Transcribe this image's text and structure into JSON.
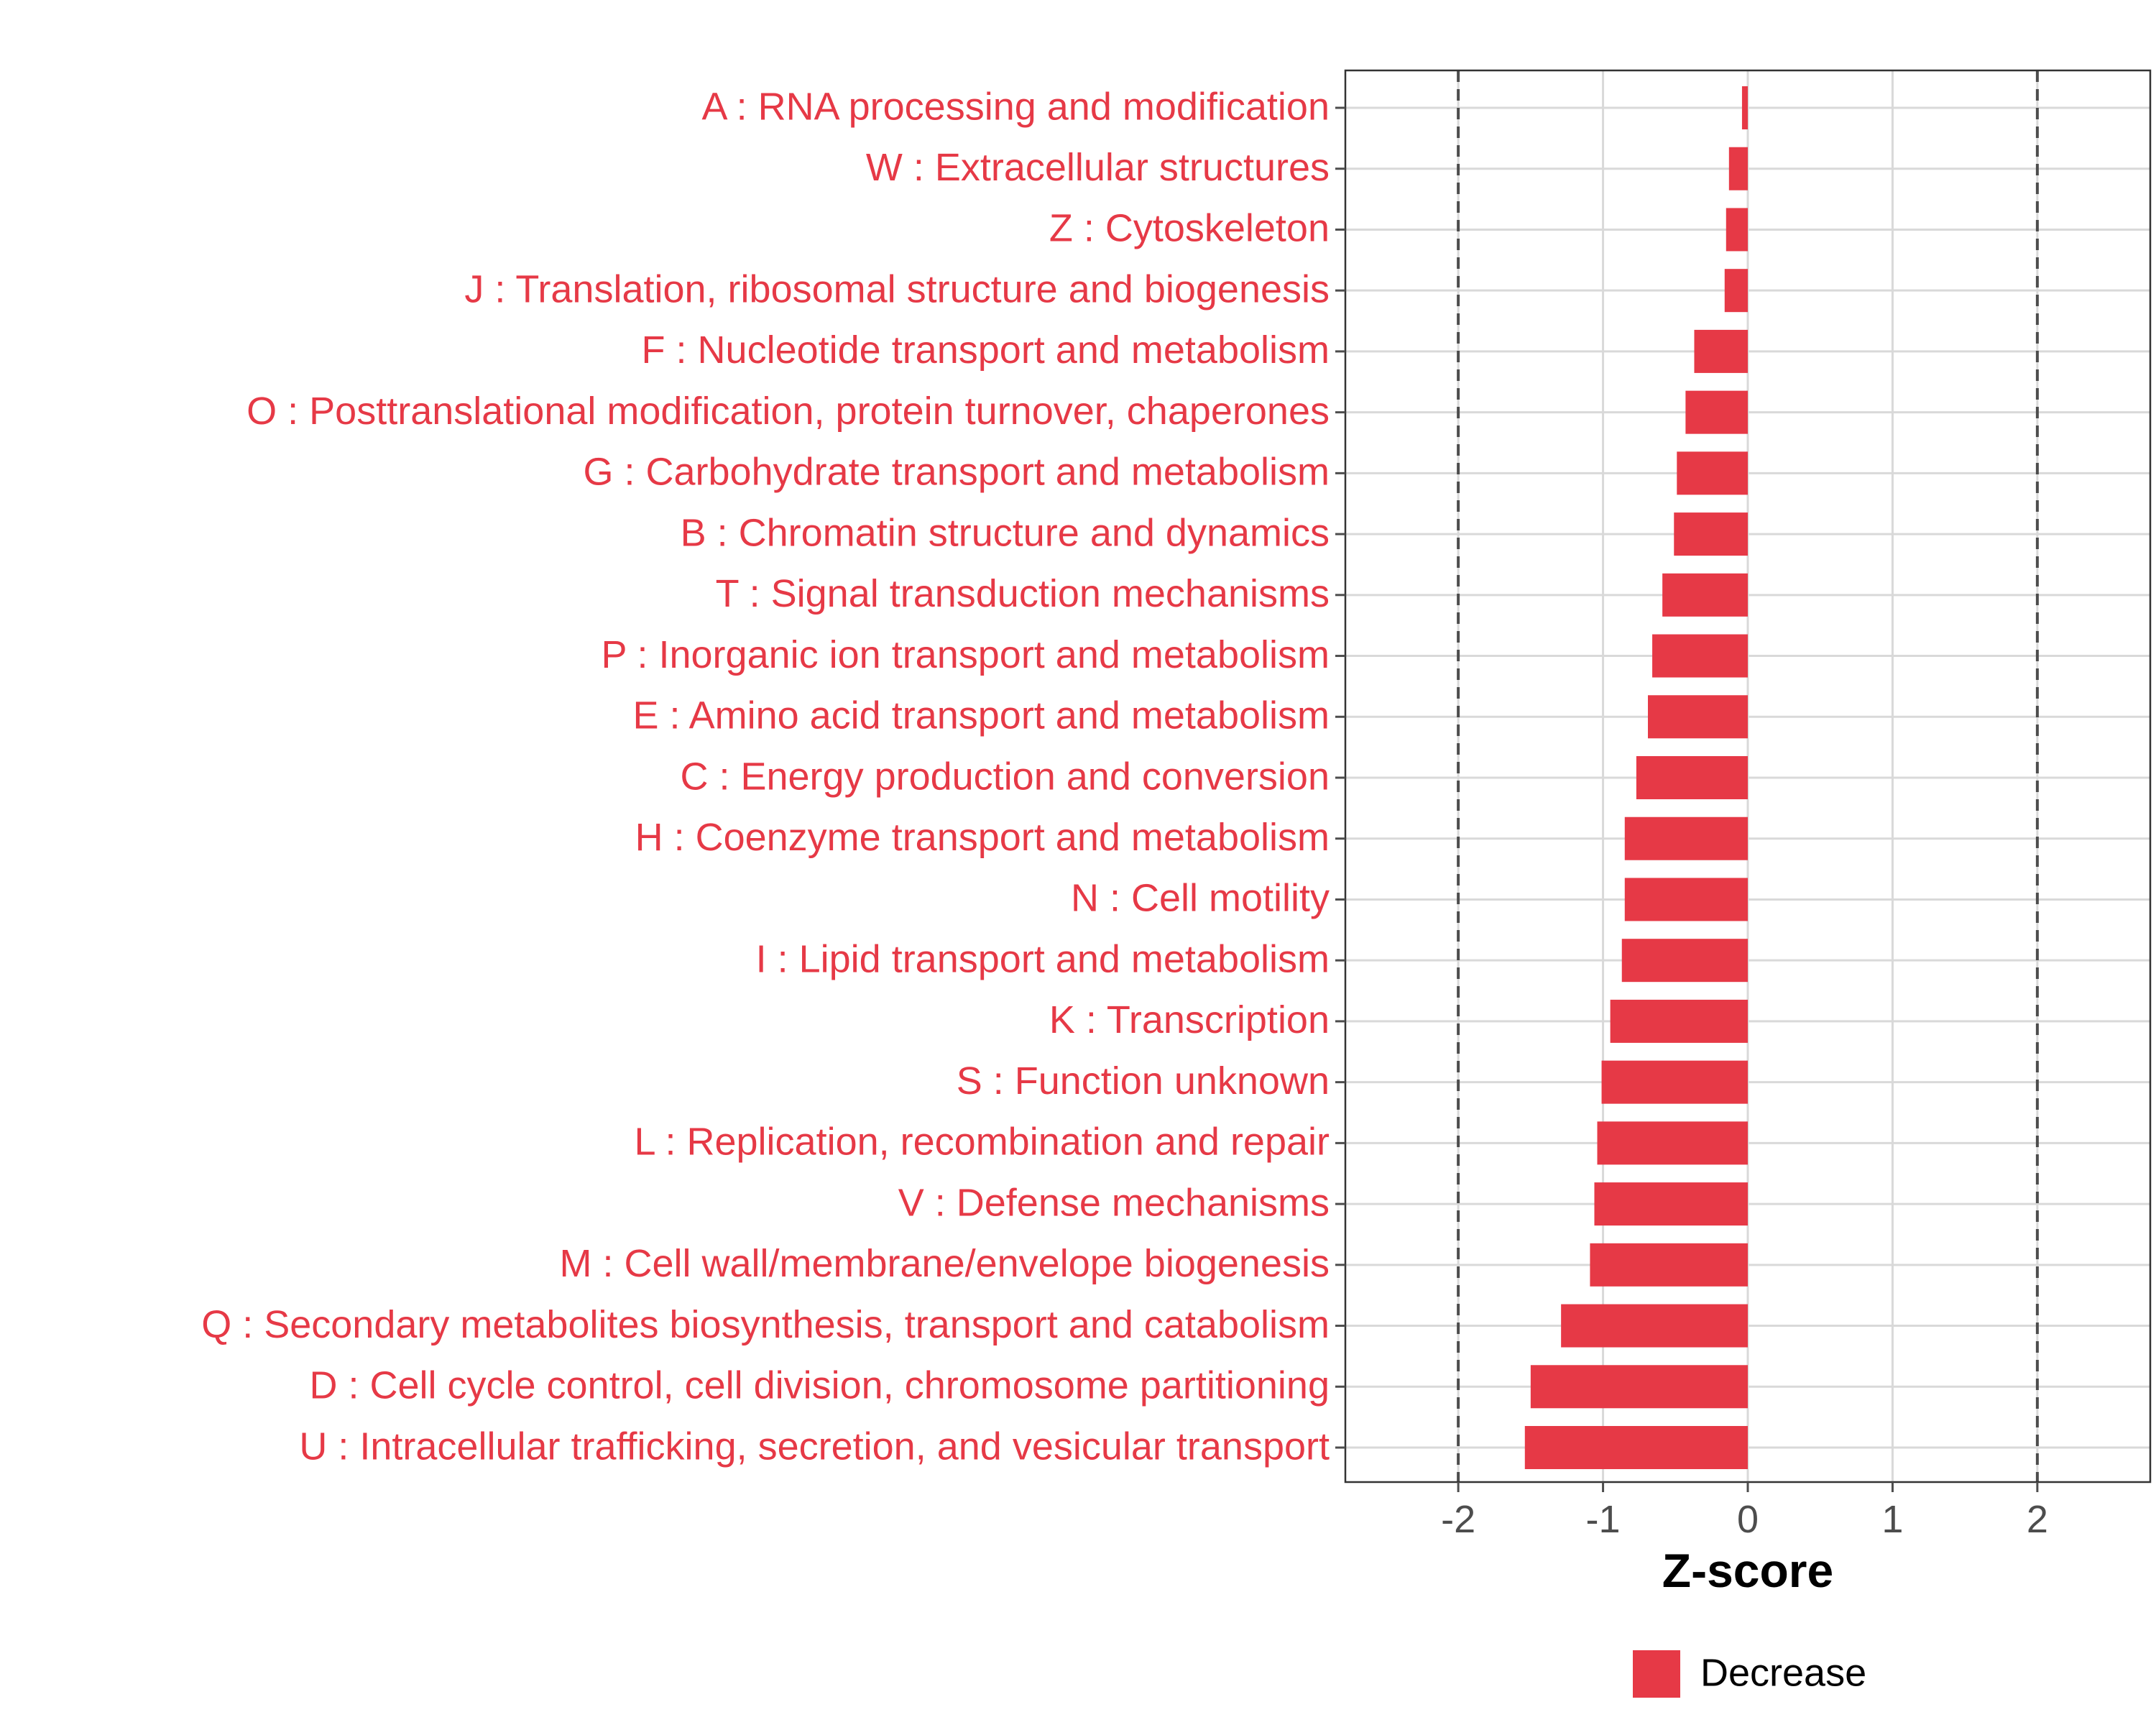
{
  "chart_data": {
    "type": "bar",
    "orientation": "horizontal",
    "categories": [
      "A : RNA processing and modification",
      "W : Extracellular structures",
      "Z : Cytoskeleton",
      "J : Translation, ribosomal structure and biogenesis",
      "F : Nucleotide transport and metabolism",
      "O : Posttranslational modification, protein turnover, chaperones",
      "G : Carbohydrate transport and metabolism",
      "B : Chromatin structure and dynamics",
      "T : Signal transduction mechanisms",
      "P : Inorganic ion transport and metabolism",
      "E : Amino acid transport and metabolism",
      "C : Energy production and conversion",
      "H : Coenzyme transport and metabolism",
      "N : Cell motility",
      "I : Lipid transport and metabolism",
      "K : Transcription",
      "S : Function unknown",
      "L : Replication, recombination and repair",
      "V : Defense mechanisms",
      "M : Cell wall/membrane/envelope biogenesis",
      "Q : Secondary metabolites biosynthesis, transport and catabolism",
      "D : Cell cycle control, cell division, chromosome partitioning",
      "U : Intracellular trafficking, secretion, and vesicular transport"
    ],
    "values": [
      -0.04,
      -0.13,
      -0.15,
      -0.16,
      -0.37,
      -0.43,
      -0.49,
      -0.51,
      -0.59,
      -0.66,
      -0.69,
      -0.77,
      -0.85,
      -0.85,
      -0.87,
      -0.95,
      -1.01,
      -1.04,
      -1.06,
      -1.09,
      -1.29,
      -1.5,
      -1.54
    ],
    "series": [
      {
        "name": "Decrease",
        "color": "#e63946"
      }
    ],
    "xlabel": "Z-score",
    "ylabel": "",
    "xlim": [
      -2.78,
      2.78
    ],
    "xticks": [
      -2,
      -1,
      0,
      1,
      2
    ],
    "xtick_labels": [
      "-2",
      "-1",
      "0",
      "1",
      "2"
    ],
    "reference_lines": [
      -2,
      2
    ],
    "grid": true,
    "legend": {
      "position": "bottom",
      "entries": [
        "Decrease"
      ]
    },
    "label_color": "#e63946",
    "colors": {
      "bar": "#e63946",
      "grid": "#d9d9d9",
      "panel_border": "#333333",
      "ref_line": "#4d4d4d",
      "tick": "#4d4d4d"
    }
  }
}
